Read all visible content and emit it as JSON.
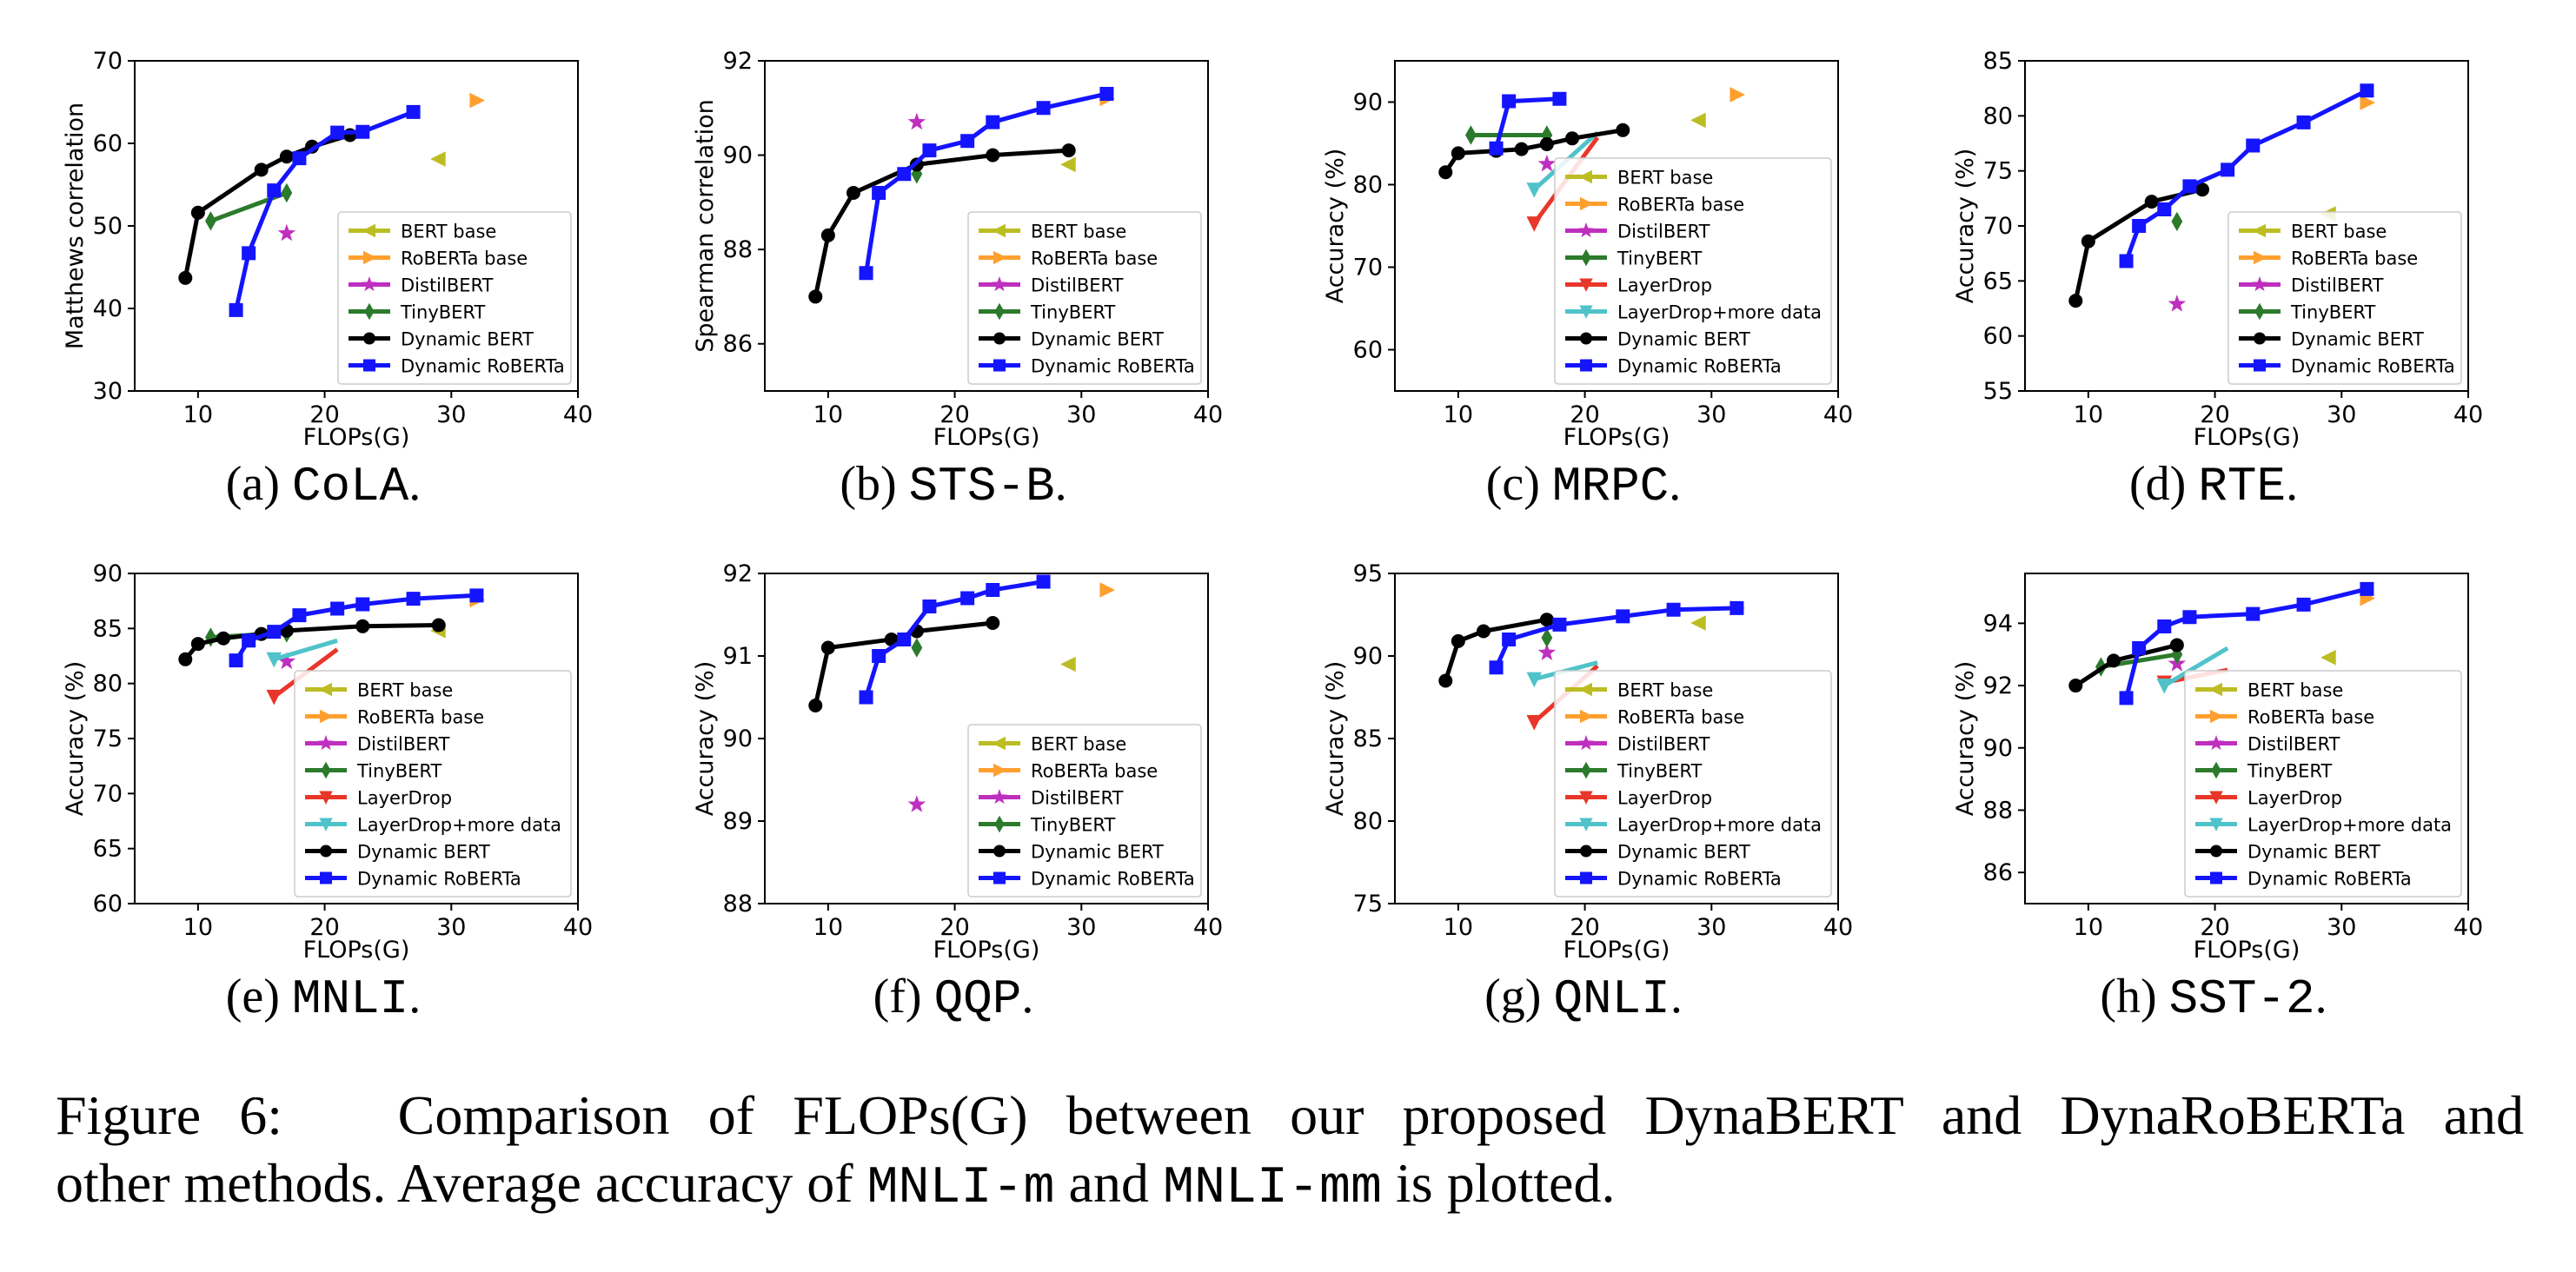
{
  "colors": {
    "bert_base": "#bcbd22",
    "roberta_base": "#ff9f2e",
    "distilbert": "#bf2fbf",
    "tinybert": "#2c7a2c",
    "layerdrop": "#e8372a",
    "layerdrop_more": "#4fc3c9",
    "dynamic_bert": "#000000",
    "dynamic_roberta": "#1414ff"
  },
  "caption": {
    "label": "Figure 6:",
    "text_a": "Comparison of FLOPs(G) between our proposed DynaBERT and DynaRoBERTa and",
    "text_b": "other methods. Average accuracy of",
    "mono1": "MNLI-m",
    "and": "and",
    "mono2": "MNLI-mm",
    "text_c": "is plotted."
  },
  "chart_data": [
    {
      "id": "cola",
      "type": "line",
      "subcaption_letter": "(a)",
      "subcaption_name": "CoLA",
      "subcaption_dot": ".",
      "xlabel": "FLOPs(G)",
      "ylabel": "Matthews correlation",
      "xlim": [
        5,
        40
      ],
      "ylim": [
        30,
        70
      ],
      "xticks": [
        "10",
        "20",
        "30",
        "40"
      ],
      "xtick_values": [
        10,
        20,
        30,
        40
      ],
      "yticks": [
        "30",
        "40",
        "50",
        "60",
        "70"
      ],
      "ytick_values": [
        30,
        40,
        50,
        60,
        70
      ],
      "legend": "lower-right",
      "points": [
        {
          "name": "BERT base",
          "key": "bert_base",
          "marker": "tri-left",
          "x": 29,
          "y": 58.1
        },
        {
          "name": "RoBERTa base",
          "key": "roberta_base",
          "marker": "tri-right",
          "x": 32,
          "y": 65.2
        },
        {
          "name": "DistilBERT",
          "key": "distilbert",
          "marker": "star",
          "x": 17,
          "y": 49.1
        },
        {
          "name": "TinyBERT",
          "key": "tinybert",
          "marker": "diamond",
          "x": [
            11,
            17
          ],
          "y": [
            50.6,
            54.0
          ]
        }
      ],
      "lines": [
        {
          "name": "Dynamic BERT",
          "key": "dynamic_bert",
          "marker": "circle",
          "x": [
            9,
            10,
            15,
            17,
            19,
            22
          ],
          "y": [
            43.7,
            51.6,
            56.8,
            58.4,
            59.6,
            61.0
          ]
        },
        {
          "name": "Dynamic RoBERTa",
          "key": "dynamic_roberta",
          "marker": "square",
          "x": [
            13,
            14,
            16,
            18,
            21,
            23,
            27
          ],
          "y": [
            39.8,
            46.7,
            54.3,
            58.2,
            61.3,
            61.4,
            63.8
          ]
        }
      ]
    },
    {
      "id": "stsb",
      "type": "line",
      "subcaption_letter": "(b)",
      "subcaption_name": "STS-B",
      "subcaption_dot": ".",
      "xlabel": "FLOPs(G)",
      "ylabel": "Spearman correlation",
      "xlim": [
        5,
        40
      ],
      "ylim": [
        85,
        92
      ],
      "xticks": [
        "10",
        "20",
        "30",
        "40"
      ],
      "xtick_values": [
        10,
        20,
        30,
        40
      ],
      "yticks": [
        "86",
        "88",
        "90",
        "92"
      ],
      "ytick_values": [
        86,
        88,
        90,
        92
      ],
      "legend": "lower-right",
      "points": [
        {
          "name": "BERT base",
          "key": "bert_base",
          "marker": "tri-left",
          "x": 29,
          "y": 89.8
        },
        {
          "name": "RoBERTa base",
          "key": "roberta_base",
          "marker": "tri-right",
          "x": 32,
          "y": 91.2
        },
        {
          "name": "DistilBERT",
          "key": "distilbert",
          "marker": "star",
          "x": 17,
          "y": 90.7
        },
        {
          "name": "TinyBERT",
          "key": "tinybert",
          "marker": "diamond",
          "x": 17,
          "y": 89.6
        }
      ],
      "lines": [
        {
          "name": "Dynamic BERT",
          "key": "dynamic_bert",
          "marker": "circle",
          "x": [
            9,
            10,
            12,
            17,
            23,
            29
          ],
          "y": [
            87.0,
            88.3,
            89.2,
            89.8,
            90.0,
            90.1
          ]
        },
        {
          "name": "Dynamic RoBERTa",
          "key": "dynamic_roberta",
          "marker": "square",
          "x": [
            13,
            14,
            16,
            18,
            21,
            23,
            27,
            32
          ],
          "y": [
            87.5,
            89.2,
            89.6,
            90.1,
            90.3,
            90.7,
            91.0,
            91.3
          ]
        }
      ]
    },
    {
      "id": "mrpc",
      "type": "line",
      "subcaption_letter": "(c)",
      "subcaption_name": "MRPC",
      "subcaption_dot": ".",
      "xlabel": "FLOPs(G)",
      "ylabel": "Accuracy (%)",
      "xlim": [
        5,
        40
      ],
      "ylim": [
        55,
        95
      ],
      "xticks": [
        "10",
        "20",
        "30",
        "40"
      ],
      "xtick_values": [
        10,
        20,
        30,
        40
      ],
      "yticks": [
        "60",
        "70",
        "80",
        "90"
      ],
      "ytick_values": [
        60,
        70,
        80,
        90
      ],
      "legend": "lower-right",
      "points": [
        {
          "name": "BERT base",
          "key": "bert_base",
          "marker": "tri-left",
          "x": 29,
          "y": 87.8
        },
        {
          "name": "RoBERTa base",
          "key": "roberta_base",
          "marker": "tri-right",
          "x": 32,
          "y": 90.9
        },
        {
          "name": "DistilBERT",
          "key": "distilbert",
          "marker": "star",
          "x": 17,
          "y": 82.5
        },
        {
          "name": "TinyBERT",
          "key": "tinybert",
          "marker": "diamond",
          "x": [
            11,
            17
          ],
          "y": [
            86.0,
            86.0
          ]
        },
        {
          "name": "LayerDrop",
          "key": "layerdrop",
          "marker": "tri-down",
          "x": [
            16,
            21
          ],
          "y": [
            75.3,
            85.7
          ]
        },
        {
          "name": "LayerDrop+more data",
          "key": "layerdrop_more",
          "marker": "tri-down",
          "x": [
            16,
            21
          ],
          "y": [
            79.4,
            86.3
          ]
        }
      ],
      "lines": [
        {
          "name": "Dynamic BERT",
          "key": "dynamic_bert",
          "marker": "circle",
          "x": [
            9,
            10,
            13,
            15,
            17,
            19,
            23
          ],
          "y": [
            81.5,
            83.8,
            84.1,
            84.3,
            84.9,
            85.6,
            86.6
          ]
        },
        {
          "name": "Dynamic RoBERTa",
          "key": "dynamic_roberta",
          "marker": "square",
          "x": [
            13,
            14,
            18
          ],
          "y": [
            84.4,
            90.1,
            90.4
          ]
        }
      ]
    },
    {
      "id": "rte",
      "type": "line",
      "subcaption_letter": "(d)",
      "subcaption_name": "RTE",
      "subcaption_dot": ".",
      "xlabel": "FLOPs(G)",
      "ylabel": "Accuracy (%)",
      "xlim": [
        5,
        40
      ],
      "ylim": [
        55,
        85
      ],
      "xticks": [
        "10",
        "20",
        "30",
        "40"
      ],
      "xtick_values": [
        10,
        20,
        30,
        40
      ],
      "yticks": [
        "55",
        "60",
        "65",
        "70",
        "75",
        "80",
        "85"
      ],
      "ytick_values": [
        55,
        60,
        65,
        70,
        75,
        80,
        85
      ],
      "legend": "lower-right",
      "points": [
        {
          "name": "BERT base",
          "key": "bert_base",
          "marker": "tri-left",
          "x": 29,
          "y": 71.1
        },
        {
          "name": "RoBERTa base",
          "key": "roberta_base",
          "marker": "tri-right",
          "x": 32,
          "y": 81.2
        },
        {
          "name": "DistilBERT",
          "key": "distilbert",
          "marker": "star",
          "x": 17,
          "y": 62.9
        },
        {
          "name": "TinyBERT",
          "key": "tinybert",
          "marker": "diamond",
          "x": 17,
          "y": 70.4
        }
      ],
      "lines": [
        {
          "name": "Dynamic BERT",
          "key": "dynamic_bert",
          "marker": "circle",
          "x": [
            9,
            10,
            15,
            19
          ],
          "y": [
            63.2,
            68.6,
            72.2,
            73.3
          ]
        },
        {
          "name": "Dynamic RoBERTa",
          "key": "dynamic_roberta",
          "marker": "square",
          "x": [
            13,
            14,
            16,
            18,
            21,
            23,
            27,
            32
          ],
          "y": [
            66.8,
            70.0,
            71.5,
            73.6,
            75.1,
            77.3,
            79.4,
            82.3
          ]
        }
      ]
    },
    {
      "id": "mnli",
      "type": "line",
      "subcaption_letter": "(e)",
      "subcaption_name": "MNLI",
      "subcaption_dot": ".",
      "xlabel": "FLOPs(G)",
      "ylabel": "Accuracy (%)",
      "xlim": [
        5,
        40
      ],
      "ylim": [
        60,
        90
      ],
      "xticks": [
        "10",
        "20",
        "30",
        "40"
      ],
      "xtick_values": [
        10,
        20,
        30,
        40
      ],
      "yticks": [
        "60",
        "65",
        "70",
        "75",
        "80",
        "85",
        "90"
      ],
      "ytick_values": [
        60,
        65,
        70,
        75,
        80,
        85,
        90
      ],
      "legend": "lower-right",
      "points": [
        {
          "name": "BERT base",
          "key": "bert_base",
          "marker": "tri-left",
          "x": 29,
          "y": 84.8
        },
        {
          "name": "RoBERTa base",
          "key": "roberta_base",
          "marker": "tri-right",
          "x": 32,
          "y": 87.6
        },
        {
          "name": "DistilBERT",
          "key": "distilbert",
          "marker": "star",
          "x": 17,
          "y": 82.0
        },
        {
          "name": "TinyBERT",
          "key": "tinybert",
          "marker": "diamond",
          "x": [
            11,
            17
          ],
          "y": [
            84.2,
            84.6
          ]
        },
        {
          "name": "LayerDrop",
          "key": "layerdrop",
          "marker": "tri-down",
          "x": [
            16,
            21
          ],
          "y": [
            78.8,
            83.1
          ]
        },
        {
          "name": "LayerDrop+more data",
          "key": "layerdrop_more",
          "marker": "tri-down",
          "x": [
            16,
            21
          ],
          "y": [
            82.2,
            83.9
          ]
        }
      ],
      "lines": [
        {
          "name": "Dynamic BERT",
          "key": "dynamic_bert",
          "marker": "circle",
          "x": [
            9,
            10,
            12,
            15,
            17,
            23,
            29
          ],
          "y": [
            82.2,
            83.6,
            84.1,
            84.5,
            84.8,
            85.2,
            85.3
          ]
        },
        {
          "name": "Dynamic RoBERTa",
          "key": "dynamic_roberta",
          "marker": "square",
          "x": [
            13,
            14,
            16,
            18,
            21,
            23,
            27,
            32
          ],
          "y": [
            82.1,
            83.9,
            84.7,
            86.2,
            86.8,
            87.2,
            87.7,
            88.0
          ]
        }
      ]
    },
    {
      "id": "qqp",
      "type": "line",
      "subcaption_letter": "(f)",
      "subcaption_name": "QQP",
      "subcaption_dot": ".",
      "xlabel": "FLOPs(G)",
      "ylabel": "Accuracy (%)",
      "xlim": [
        5,
        40
      ],
      "ylim": [
        88,
        92
      ],
      "xticks": [
        "10",
        "20",
        "30",
        "40"
      ],
      "xtick_values": [
        10,
        20,
        30,
        40
      ],
      "yticks": [
        "88",
        "89",
        "90",
        "91",
        "92"
      ],
      "ytick_values": [
        88,
        89,
        90,
        91,
        92
      ],
      "legend": "lower-right",
      "points": [
        {
          "name": "BERT base",
          "key": "bert_base",
          "marker": "tri-left",
          "x": 29,
          "y": 90.9
        },
        {
          "name": "RoBERTa base",
          "key": "roberta_base",
          "marker": "tri-right",
          "x": 32,
          "y": 91.8
        },
        {
          "name": "DistilBERT",
          "key": "distilbert",
          "marker": "star",
          "x": 17,
          "y": 89.2
        },
        {
          "name": "TinyBERT",
          "key": "tinybert",
          "marker": "diamond",
          "x": 17,
          "y": 91.1
        }
      ],
      "lines": [
        {
          "name": "Dynamic BERT",
          "key": "dynamic_bert",
          "marker": "circle",
          "x": [
            9,
            10,
            15,
            17,
            23
          ],
          "y": [
            90.4,
            91.1,
            91.2,
            91.3,
            91.4
          ]
        },
        {
          "name": "Dynamic RoBERTa",
          "key": "dynamic_roberta",
          "marker": "square",
          "x": [
            13,
            14,
            16,
            18,
            21,
            23,
            27
          ],
          "y": [
            90.5,
            91.0,
            91.2,
            91.6,
            91.7,
            91.8,
            91.9
          ]
        }
      ]
    },
    {
      "id": "qnli",
      "type": "line",
      "subcaption_letter": "(g)",
      "subcaption_name": "QNLI",
      "subcaption_dot": ".",
      "xlabel": "FLOPs(G)",
      "ylabel": "Accuracy (%)",
      "xlim": [
        5,
        40
      ],
      "ylim": [
        75,
        95
      ],
      "xticks": [
        "10",
        "20",
        "30",
        "40"
      ],
      "xtick_values": [
        10,
        20,
        30,
        40
      ],
      "yticks": [
        "75",
        "80",
        "85",
        "90",
        "95"
      ],
      "ytick_values": [
        75,
        80,
        85,
        90,
        95
      ],
      "legend": "lower-right",
      "points": [
        {
          "name": "BERT base",
          "key": "bert_base",
          "marker": "tri-left",
          "x": 29,
          "y": 92.0
        },
        {
          "name": "RoBERTa base",
          "key": "roberta_base",
          "marker": "tri-right",
          "x": 32,
          "y": 92.9
        },
        {
          "name": "DistilBERT",
          "key": "distilbert",
          "marker": "star",
          "x": 17,
          "y": 90.2
        },
        {
          "name": "TinyBERT",
          "key": "tinybert",
          "marker": "diamond",
          "x": 17,
          "y": 91.1
        },
        {
          "name": "LayerDrop",
          "key": "layerdrop",
          "marker": "tri-down",
          "x": [
            16,
            21
          ],
          "y": [
            86.0,
            89.4
          ]
        },
        {
          "name": "LayerDrop+more data",
          "key": "layerdrop_more",
          "marker": "tri-down",
          "x": [
            16,
            21
          ],
          "y": [
            88.6,
            89.6
          ]
        }
      ],
      "lines": [
        {
          "name": "Dynamic BERT",
          "key": "dynamic_bert",
          "marker": "circle",
          "x": [
            9,
            10,
            12,
            17
          ],
          "y": [
            88.5,
            90.9,
            91.5,
            92.2
          ]
        },
        {
          "name": "Dynamic RoBERTa",
          "key": "dynamic_roberta",
          "marker": "square",
          "x": [
            13,
            14,
            18,
            23,
            27,
            32
          ],
          "y": [
            89.3,
            91.0,
            91.9,
            92.4,
            92.8,
            92.9
          ]
        }
      ]
    },
    {
      "id": "sst2",
      "type": "line",
      "subcaption_letter": "(h)",
      "subcaption_name": "SST-2",
      "subcaption_dot": ".",
      "xlabel": "FLOPs(G)",
      "ylabel": "Accuracy (%)",
      "xlim": [
        5,
        40
      ],
      "ylim": [
        85,
        95.6
      ],
      "xticks": [
        "10",
        "20",
        "30",
        "40"
      ],
      "xtick_values": [
        10,
        20,
        30,
        40
      ],
      "yticks": [
        "86",
        "88",
        "90",
        "92",
        "94"
      ],
      "ytick_values": [
        86,
        88,
        90,
        92,
        94
      ],
      "legend": "lower-right",
      "points": [
        {
          "name": "BERT base",
          "key": "bert_base",
          "marker": "tri-left",
          "x": 29,
          "y": 92.9
        },
        {
          "name": "RoBERTa base",
          "key": "roberta_base",
          "marker": "tri-right",
          "x": 32,
          "y": 94.8
        },
        {
          "name": "DistilBERT",
          "key": "distilbert",
          "marker": "star",
          "x": 17,
          "y": 92.7
        },
        {
          "name": "TinyBERT",
          "key": "tinybert",
          "marker": "diamond",
          "x": [
            11,
            17
          ],
          "y": [
            92.6,
            93.0
          ]
        },
        {
          "name": "LayerDrop",
          "key": "layerdrop",
          "marker": "tri-down",
          "x": [
            16,
            21
          ],
          "y": [
            92.1,
            92.5
          ]
        },
        {
          "name": "LayerDrop+more data",
          "key": "layerdrop_more",
          "marker": "tri-down",
          "x": [
            16,
            21
          ],
          "y": [
            92.0,
            93.2
          ]
        }
      ],
      "lines": [
        {
          "name": "Dynamic BERT",
          "key": "dynamic_bert",
          "marker": "circle",
          "x": [
            9,
            12,
            17
          ],
          "y": [
            92.0,
            92.8,
            93.3
          ]
        },
        {
          "name": "Dynamic RoBERTa",
          "key": "dynamic_roberta",
          "marker": "square",
          "x": [
            13,
            14,
            16,
            18,
            23,
            27,
            32
          ],
          "y": [
            91.6,
            93.2,
            93.9,
            94.2,
            94.3,
            94.6,
            95.1
          ]
        }
      ]
    }
  ]
}
